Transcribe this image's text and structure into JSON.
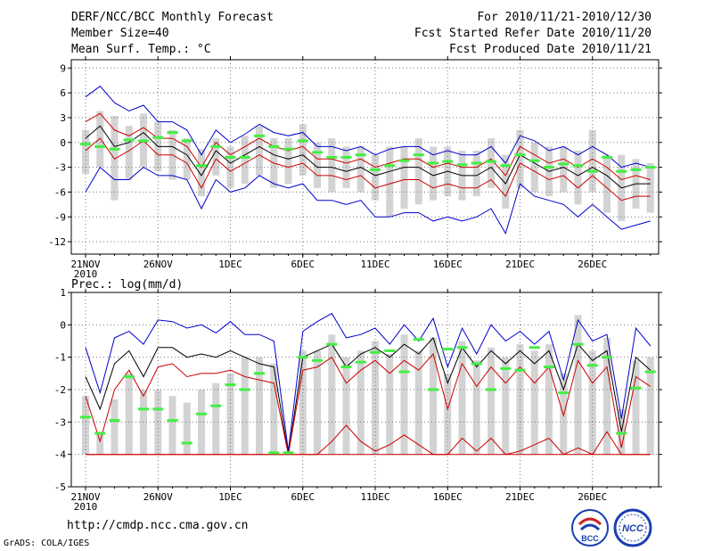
{
  "header": {
    "title": "DERF/NCC/BCC Monthly Forecast",
    "member_size": "Member Size=40",
    "variable": "Mean Surf. Temp.: °C",
    "period": "For 2010/11/21-2010/12/30",
    "refer_date": "Fcst Started Refer Date 2010/11/20",
    "produced_date": "Fcst Produced Date 2010/11/21"
  },
  "footer": {
    "url": "http://cmdp.ncc.cma.gov.cn",
    "credit": "GrADS: COLA/IGES",
    "logo_left_text": "BCC",
    "logo_right_text": "NCC"
  },
  "colors": {
    "envelope": "#0000cc",
    "spread": "#cc0000",
    "mean": "#000000",
    "observed": "#44ee44",
    "box": "#d3d3d3"
  },
  "chart_data": [
    {
      "type": "line",
      "title": "Mean Surf. Temp.: °C",
      "ylim": [
        -13.5,
        10
      ],
      "yticks": [
        9,
        6,
        3,
        0,
        -3,
        -6,
        -9,
        -12
      ],
      "xticks": [
        {
          "day": 1,
          "label": "21NOV",
          "sub": "2010"
        },
        {
          "day": 6,
          "label": "26NOV"
        },
        {
          "day": 11,
          "label": "1DEC"
        },
        {
          "day": 16,
          "label": "6DEC"
        },
        {
          "day": 21,
          "label": "11DEC"
        },
        {
          "day": 26,
          "label": "16DEC"
        },
        {
          "day": 31,
          "label": "21DEC"
        },
        {
          "day": 36,
          "label": "26DEC"
        }
      ],
      "days": 40,
      "series": [
        {
          "name": "upper envelope",
          "color": "#0000cc",
          "values": [
            5.5,
            6.8,
            4.8,
            3.8,
            4.5,
            2.5,
            2.5,
            1.5,
            -1.5,
            1.5,
            0,
            1,
            2.2,
            1.2,
            0.8,
            1.2,
            -0.5,
            -0.5,
            -1,
            -0.5,
            -1.5,
            -0.8,
            -0.5,
            -0.5,
            -1.5,
            -1,
            -1.5,
            -1.5,
            -0.5,
            -2.5,
            0.8,
            0.2,
            -1,
            -0.5,
            -1.5,
            -0.5,
            -1.5,
            -3,
            -2.5,
            -3
          ]
        },
        {
          "name": "upper spread",
          "color": "#cc0000",
          "values": [
            2.5,
            3.5,
            1.5,
            0.8,
            1.8,
            0.5,
            0.5,
            -0.5,
            -3,
            0,
            -1.5,
            -0.5,
            0.5,
            -0.5,
            -1,
            -0.5,
            -2,
            -2,
            -2.5,
            -2,
            -3,
            -2.5,
            -2,
            -2,
            -3,
            -2.5,
            -3,
            -3,
            -2,
            -4,
            -0.5,
            -1.5,
            -2.5,
            -2,
            -3,
            -2,
            -3,
            -4.5,
            -4,
            -4.5
          ]
        },
        {
          "name": "ensemble mean",
          "color": "#000000",
          "values": [
            0.5,
            2,
            -0.5,
            0,
            1.2,
            -0.5,
            -0.5,
            -1.5,
            -4,
            -1,
            -2.5,
            -1.5,
            -0.5,
            -1.5,
            -2,
            -1.5,
            -3,
            -3,
            -3.5,
            -3,
            -4,
            -3.5,
            -3,
            -3,
            -4,
            -3.5,
            -4,
            -4,
            -3,
            -5,
            -1.5,
            -2.5,
            -3.5,
            -3,
            -4,
            -3,
            -4,
            -5.5,
            -5,
            -5
          ]
        },
        {
          "name": "lower spread",
          "color": "#cc0000",
          "values": [
            -1,
            0.5,
            -2,
            -1,
            0.2,
            -1.5,
            -1.5,
            -2.5,
            -5.5,
            -2,
            -3.5,
            -2.5,
            -1.5,
            -2.5,
            -3,
            -2.5,
            -4,
            -4,
            -4.5,
            -4,
            -5.5,
            -5,
            -4.5,
            -4.5,
            -5.5,
            -5,
            -5.5,
            -5.5,
            -4.5,
            -6.5,
            -2.5,
            -3.5,
            -4.5,
            -4,
            -5.5,
            -4,
            -5.5,
            -7,
            -6.5,
            -6.5
          ]
        },
        {
          "name": "lower envelope",
          "color": "#0000cc",
          "values": [
            -6,
            -3,
            -4.5,
            -4.5,
            -3,
            -4,
            -4,
            -4.5,
            -8,
            -4.5,
            -6,
            -5.5,
            -4,
            -5,
            -5.5,
            -5,
            -7,
            -7,
            -7.5,
            -7,
            -9,
            -9,
            -8.5,
            -8.5,
            -9.5,
            -9,
            -9.5,
            -9,
            -8,
            -11,
            -5,
            -6.5,
            -7,
            -7.5,
            -9,
            -7.5,
            -9,
            -10.5,
            -10,
            -9.5
          ]
        }
      ],
      "observed": [
        -0.2,
        -0.5,
        -0.8,
        0.3,
        0.2,
        0.6,
        1.2,
        0.2,
        -2.8,
        -0.5,
        -1.8,
        -1.8,
        0.8,
        -0.5,
        -0.8,
        0.2,
        -1.2,
        -1.8,
        -1.8,
        -1.5,
        -3.3,
        -2.8,
        -2.2,
        -1.5,
        -2.5,
        -2.3,
        -2.7,
        -2.5,
        -2.3,
        -2.8,
        -1.5,
        -2.2,
        -3.0,
        -2.6,
        -2.8,
        -3.5,
        -1.8,
        -3.5,
        -3.3,
        -3.0
      ],
      "boxes": [
        {
          "low": -3.8,
          "high": 1.5
        },
        {
          "low": -3,
          "high": 3.8
        },
        {
          "low": -7,
          "high": 3.2
        },
        {
          "low": -4.5,
          "high": 2
        },
        {
          "low": -3,
          "high": 3.5
        },
        {
          "low": -3.5,
          "high": 2.5
        },
        {
          "low": -4.5,
          "high": 1.5
        },
        {
          "low": -4.5,
          "high": 0.5
        },
        {
          "low": -6.5,
          "high": -0.8
        },
        {
          "low": -4,
          "high": 0.5
        },
        {
          "low": -5.5,
          "high": -0.5
        },
        {
          "low": -5,
          "high": 0.8
        },
        {
          "low": -4,
          "high": 2
        },
        {
          "low": -5.5,
          "high": 0.5
        },
        {
          "low": -5,
          "high": 0.5
        },
        {
          "low": -4,
          "high": 2.2
        },
        {
          "low": -5.5,
          "high": 0
        },
        {
          "low": -6,
          "high": 0.5
        },
        {
          "low": -5.5,
          "high": -0.5
        },
        {
          "low": -6,
          "high": -0.5
        },
        {
          "low": -7,
          "high": -1.5
        },
        {
          "low": -9,
          "high": -0.5
        },
        {
          "low": -8,
          "high": -0.5
        },
        {
          "low": -7.5,
          "high": 0.5
        },
        {
          "low": -7,
          "high": -0.5
        },
        {
          "low": -6.5,
          "high": -0.5
        },
        {
          "low": -7,
          "high": -1
        },
        {
          "low": -6.5,
          "high": -1
        },
        {
          "low": -5.5,
          "high": 0.5
        },
        {
          "low": -8,
          "high": -1.5
        },
        {
          "low": -5.5,
          "high": 1.5
        },
        {
          "low": -6,
          "high": 0
        },
        {
          "low": -6.5,
          "high": -0.5
        },
        {
          "low": -6,
          "high": -0.5
        },
        {
          "low": -7.5,
          "high": -1
        },
        {
          "low": -6,
          "high": 1.5
        },
        {
          "low": -8.5,
          "high": -1.5
        },
        {
          "low": -9.5,
          "high": -1.5
        },
        {
          "low": -8,
          "high": -2
        },
        {
          "low": -8.5,
          "high": -2.5
        }
      ]
    },
    {
      "type": "line",
      "title": "Prec.: log(mm/d)",
      "ylim": [
        -5,
        1
      ],
      "yticks": [
        1,
        0,
        -1,
        -2,
        -3,
        -4,
        -5
      ],
      "xticks": [
        {
          "day": 1,
          "label": "21NOV",
          "sub": "2010"
        },
        {
          "day": 6,
          "label": "26NOV"
        },
        {
          "day": 11,
          "label": "1DEC"
        },
        {
          "day": 16,
          "label": "6DEC"
        },
        {
          "day": 21,
          "label": "11DEC"
        },
        {
          "day": 26,
          "label": "16DEC"
        },
        {
          "day": 31,
          "label": "21DEC"
        },
        {
          "day": 36,
          "label": "26DEC"
        }
      ],
      "days": 40,
      "series": [
        {
          "name": "upper envelope",
          "color": "#0000cc",
          "values": [
            -0.7,
            -2.1,
            -0.4,
            -0.2,
            -0.6,
            0.15,
            0.1,
            -0.1,
            0.0,
            -0.25,
            0.1,
            -0.3,
            -0.3,
            -0.5,
            -3.9,
            -0.2,
            0.1,
            0.35,
            -0.4,
            -0.3,
            -0.1,
            -0.6,
            0.0,
            -0.5,
            0.2,
            -1.3,
            -0.1,
            -0.9,
            0.0,
            -0.5,
            -0.2,
            -0.6,
            -0.2,
            -1.7,
            0.15,
            -0.5,
            -0.3,
            -2.9,
            -0.1,
            -0.65
          ]
        },
        {
          "name": "ensemble mean",
          "color": "#000000",
          "values": [
            -1.6,
            -2.6,
            -1.2,
            -0.8,
            -1.6,
            -0.7,
            -0.7,
            -1.0,
            -0.9,
            -1.0,
            -0.8,
            -1.0,
            -1.2,
            -1.3,
            -4.0,
            -1.0,
            -0.8,
            -0.6,
            -1.3,
            -0.9,
            -0.7,
            -1.0,
            -0.6,
            -0.9,
            -0.4,
            -1.8,
            -0.7,
            -1.3,
            -0.8,
            -1.2,
            -0.8,
            -1.2,
            -0.8,
            -2.0,
            -0.6,
            -1.1,
            -0.8,
            -3.3,
            -1.0,
            -1.4
          ]
        },
        {
          "name": "upper spread",
          "color": "#cc0000",
          "values": [
            -2.2,
            -3.6,
            -2.0,
            -1.4,
            -2.2,
            -1.3,
            -1.2,
            -1.6,
            -1.5,
            -1.5,
            -1.4,
            -1.6,
            -1.7,
            -1.8,
            -4.0,
            -1.4,
            -1.3,
            -1.0,
            -1.8,
            -1.4,
            -1.1,
            -1.5,
            -1.1,
            -1.4,
            -0.9,
            -2.6,
            -1.2,
            -1.9,
            -1.3,
            -1.8,
            -1.3,
            -1.8,
            -1.3,
            -2.8,
            -1.1,
            -1.8,
            -1.3,
            -3.8,
            -1.6,
            -1.9
          ]
        },
        {
          "name": "lower spread",
          "color": "#cc0000",
          "values": [
            -4,
            -4,
            -4,
            -4,
            -4,
            -4,
            -4,
            -4,
            -4,
            -4,
            -4,
            -4,
            -4,
            -4,
            -4,
            -4,
            -4,
            -3.6,
            -3.1,
            -3.6,
            -3.9,
            -3.7,
            -3.4,
            -3.7,
            -4,
            -4,
            -3.5,
            -3.9,
            -3.5,
            -4,
            -3.9,
            -3.7,
            -3.5,
            -4,
            -3.8,
            -4,
            -3.3,
            -4,
            -4,
            -4
          ]
        },
        {
          "name": "lower envelope",
          "color": "#cc0000",
          "values": [
            -4,
            -4,
            -4,
            -4,
            -4,
            -4,
            -4,
            -4,
            -4,
            -4,
            -4,
            -4,
            -4,
            -4,
            -4,
            -4,
            -4,
            -4,
            -4,
            -4,
            -4,
            -4,
            -4,
            -4,
            -4,
            -4,
            -4,
            -4,
            -4,
            -4,
            -4,
            -4,
            -4,
            -4,
            -4,
            -4,
            -4,
            -4,
            -4,
            -4
          ]
        }
      ],
      "observed": [
        -2.85,
        -3.35,
        -2.95,
        -1.6,
        -2.6,
        -2.6,
        -2.95,
        -3.65,
        -2.75,
        -2.5,
        -1.85,
        -2.0,
        -1.5,
        -3.95,
        -3.95,
        -1.0,
        -1.1,
        -0.6,
        -1.3,
        -1.15,
        -0.85,
        -0.8,
        -1.45,
        -0.45,
        -2.0,
        -0.75,
        -0.7,
        -1.2,
        -2.0,
        -1.35,
        -1.4,
        -0.7,
        -1.3,
        -2.1,
        -0.6,
        -1.25,
        -1.0,
        -3.35,
        -1.95,
        -1.45
      ],
      "boxes": [
        {
          "low": -4,
          "high": -2.2
        },
        {
          "low": -4,
          "high": -3.3
        },
        {
          "low": -4,
          "high": -2.3
        },
        {
          "low": -4,
          "high": -1.5
        },
        {
          "low": -4,
          "high": -2.0
        },
        {
          "low": -4,
          "high": -2.0
        },
        {
          "low": -4,
          "high": -2.2
        },
        {
          "low": -4,
          "high": -2.4
        },
        {
          "low": -4,
          "high": -2.0
        },
        {
          "low": -4,
          "high": -1.8
        },
        {
          "low": -4,
          "high": -1.5
        },
        {
          "low": -4,
          "high": -1.0
        },
        {
          "low": -4,
          "high": -1.0
        },
        {
          "low": -4,
          "high": -1.2
        },
        {
          "low": -4,
          "high": -3.9
        },
        {
          "low": -4,
          "high": -0.8
        },
        {
          "low": -4,
          "high": -0.8
        },
        {
          "low": -4,
          "high": -0.3
        },
        {
          "low": -4,
          "high": -1.0
        },
        {
          "low": -4,
          "high": -0.8
        },
        {
          "low": -4,
          "high": -0.5
        },
        {
          "low": -4,
          "high": -0.9
        },
        {
          "low": -4,
          "high": -0.3
        },
        {
          "low": -4,
          "high": -0.8
        },
        {
          "low": -4,
          "high": -0.4
        },
        {
          "low": -4,
          "high": -1.5
        },
        {
          "low": -4,
          "high": -0.5
        },
        {
          "low": -4,
          "high": -1.1
        },
        {
          "low": -4,
          "high": -0.7
        },
        {
          "low": -4,
          "high": -1.0
        },
        {
          "low": -4,
          "high": -0.6
        },
        {
          "low": -4,
          "high": -0.8
        },
        {
          "low": -4,
          "high": -0.6
        },
        {
          "low": -4,
          "high": -1.5
        },
        {
          "low": -4,
          "high": 0.3
        },
        {
          "low": -4,
          "high": -0.8
        },
        {
          "low": -4,
          "high": -0.4
        },
        {
          "low": -4,
          "high": -2.6
        },
        {
          "low": -4,
          "high": -1.1
        },
        {
          "low": -4,
          "high": -1.0
        }
      ]
    }
  ]
}
